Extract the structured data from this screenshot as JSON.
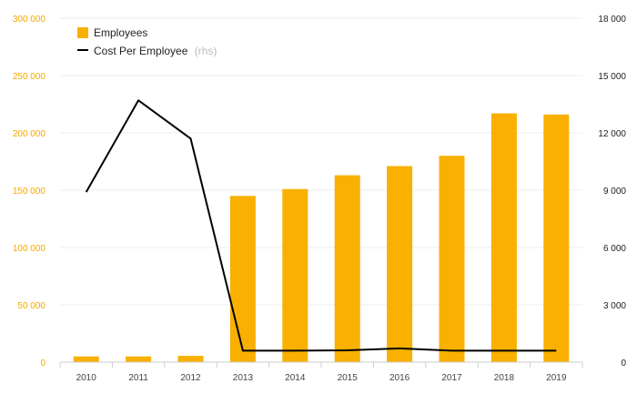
{
  "chart_data": {
    "type": "bar+line",
    "categories": [
      "2010",
      "2011",
      "2012",
      "2013",
      "2014",
      "2015",
      "2016",
      "2017",
      "2018",
      "2019"
    ],
    "series": [
      {
        "name": "Employees",
        "type": "bar",
        "axis": "left",
        "color": "#f9b000",
        "values": [
          5000,
          5000,
          5500,
          145000,
          151000,
          163000,
          171000,
          180000,
          217000,
          216000
        ]
      },
      {
        "name": "Cost Per Employee",
        "type": "line",
        "axis": "right",
        "color": "#000000",
        "values": [
          8900,
          13700,
          11700,
          600,
          600,
          620,
          720,
          600,
          600,
          600
        ]
      }
    ],
    "left_axis": {
      "ylim": [
        0,
        300000
      ],
      "ticks": [
        "0",
        "50 000",
        "100 000",
        "150 000",
        "200 000",
        "250 000",
        "300 000"
      ],
      "color": "#f5a800"
    },
    "right_axis": {
      "ylim": [
        0,
        18000
      ],
      "ticks": [
        "0",
        "3 000",
        "6 000",
        "9 000",
        "12 000",
        "15 000",
        "18 000"
      ]
    },
    "legend": {
      "placement": "top-left",
      "items": [
        {
          "label": "Employees",
          "note": ""
        },
        {
          "label": "Cost Per Employee",
          "note": "(rhs)"
        }
      ]
    },
    "grid": true
  }
}
